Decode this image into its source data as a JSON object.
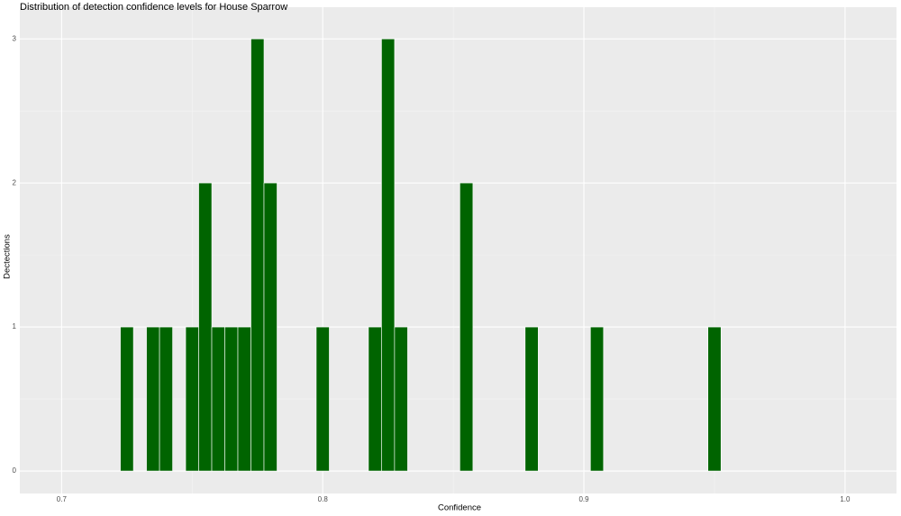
{
  "chart_data": {
    "type": "histogram",
    "title": "Distribution of detection confidence levels for House Sparrow",
    "x_label": "Confidence",
    "y_label": "Dectections",
    "bins": [
      0.7225,
      0.7275,
      0.7325,
      0.7375,
      0.7425,
      0.7475,
      0.7525,
      0.7575,
      0.7625,
      0.7675,
      0.7725,
      0.7775,
      0.7825,
      0.7875,
      0.7925,
      0.7975,
      0.8025,
      0.8075,
      0.8125,
      0.8175,
      0.8225,
      0.8275,
      0.8325,
      0.8375,
      0.8425,
      0.8475,
      0.8525,
      0.8575,
      0.8625,
      0.8675,
      0.8725,
      0.8775,
      0.8825,
      0.8875,
      0.8925,
      0.8975,
      0.9025,
      0.9075,
      0.9125,
      0.9175,
      0.9225,
      0.9275,
      0.9325,
      0.9375,
      0.9425,
      0.9475,
      0.9525
    ],
    "values": [
      1,
      0,
      1,
      1,
      0,
      1,
      2,
      1,
      1,
      1,
      3,
      2,
      0,
      0,
      0,
      1,
      0,
      0,
      0,
      1,
      3,
      1,
      0,
      0,
      0,
      0,
      2,
      0,
      0,
      0,
      0,
      1,
      0,
      0,
      0,
      0,
      1,
      0,
      0,
      0,
      0,
      0,
      0,
      0,
      0,
      1
    ],
    "color": "#006400",
    "xlim": [
      0.684,
      1.0197
    ],
    "xticks": [
      0.7,
      0.8,
      0.9,
      {
        "value": 1,
        "label": "1.0"
      }
    ],
    "ylim": [
      -0.156,
      3.22
    ],
    "yticks": [
      0,
      1,
      2,
      3
    ],
    "grid": true
  }
}
